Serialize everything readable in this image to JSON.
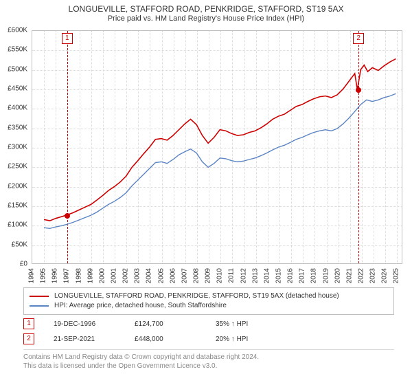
{
  "title": "LONGUEVILLE, STAFFORD ROAD, PENKRIDGE, STAFFORD, ST19 5AX",
  "subtitle": "Price paid vs. HM Land Registry's House Price Index (HPI)",
  "chart": {
    "type": "line",
    "background_color": "#ffffff",
    "grid_color": "#d9d9d9",
    "border_color": "#bfbfbf",
    "x": {
      "min": 1994,
      "max": 2025.5,
      "ticks": [
        1994,
        1995,
        1996,
        1997,
        1998,
        1999,
        2000,
        2001,
        2002,
        2003,
        2004,
        2005,
        2006,
        2007,
        2008,
        2009,
        2010,
        2011,
        2012,
        2013,
        2014,
        2015,
        2016,
        2017,
        2018,
        2019,
        2020,
        2021,
        2022,
        2023,
        2024,
        2025
      ],
      "tick_fontsize": 10
    },
    "y": {
      "min": 0,
      "max": 600000,
      "step": 50000,
      "tick_fontsize": 10,
      "prefix": "£",
      "suffix": "K",
      "divisor": 1000
    },
    "series": [
      {
        "name": "LONGUEVILLE, STAFFORD ROAD, PENKRIDGE, STAFFORD, ST19 5AX (detached house)",
        "color": "#cc0000",
        "line_width": 1.6,
        "data": [
          [
            1995.0,
            113000
          ],
          [
            1995.5,
            110000
          ],
          [
            1996.0,
            116000
          ],
          [
            1996.96,
            124700
          ],
          [
            1997.5,
            131000
          ],
          [
            1998.0,
            138000
          ],
          [
            1998.5,
            145000
          ],
          [
            1999.0,
            152000
          ],
          [
            1999.5,
            163000
          ],
          [
            2000.0,
            175000
          ],
          [
            2000.5,
            188000
          ],
          [
            2001.0,
            198000
          ],
          [
            2001.5,
            210000
          ],
          [
            2002.0,
            225000
          ],
          [
            2002.5,
            248000
          ],
          [
            2003.0,
            265000
          ],
          [
            2003.5,
            283000
          ],
          [
            2004.0,
            300000
          ],
          [
            2004.5,
            320000
          ],
          [
            2005.0,
            322000
          ],
          [
            2005.5,
            318000
          ],
          [
            2006.0,
            330000
          ],
          [
            2006.5,
            345000
          ],
          [
            2007.0,
            360000
          ],
          [
            2007.5,
            372000
          ],
          [
            2008.0,
            358000
          ],
          [
            2008.5,
            330000
          ],
          [
            2009.0,
            310000
          ],
          [
            2009.5,
            325000
          ],
          [
            2010.0,
            345000
          ],
          [
            2010.5,
            342000
          ],
          [
            2011.0,
            335000
          ],
          [
            2011.5,
            330000
          ],
          [
            2012.0,
            332000
          ],
          [
            2012.5,
            338000
          ],
          [
            2013.0,
            342000
          ],
          [
            2013.5,
            350000
          ],
          [
            2014.0,
            360000
          ],
          [
            2014.5,
            372000
          ],
          [
            2015.0,
            380000
          ],
          [
            2015.5,
            385000
          ],
          [
            2016.0,
            395000
          ],
          [
            2016.5,
            405000
          ],
          [
            2017.0,
            410000
          ],
          [
            2017.5,
            418000
          ],
          [
            2018.0,
            425000
          ],
          [
            2018.5,
            430000
          ],
          [
            2019.0,
            432000
          ],
          [
            2019.5,
            428000
          ],
          [
            2020.0,
            435000
          ],
          [
            2020.5,
            450000
          ],
          [
            2021.0,
            470000
          ],
          [
            2021.5,
            490000
          ],
          [
            2021.72,
            448000
          ],
          [
            2022.0,
            500000
          ],
          [
            2022.3,
            512000
          ],
          [
            2022.6,
            495000
          ],
          [
            2023.0,
            505000
          ],
          [
            2023.5,
            498000
          ],
          [
            2024.0,
            510000
          ],
          [
            2024.5,
            520000
          ],
          [
            2025.0,
            528000
          ]
        ]
      },
      {
        "name": "HPI: Average price, detached house, South Staffordshire",
        "color": "#5b84c4",
        "line_width": 1.4,
        "data": [
          [
            1995.0,
            92000
          ],
          [
            1995.5,
            90000
          ],
          [
            1996.0,
            94000
          ],
          [
            1996.5,
            97000
          ],
          [
            1997.0,
            101000
          ],
          [
            1997.5,
            106000
          ],
          [
            1998.0,
            112000
          ],
          [
            1998.5,
            118000
          ],
          [
            1999.0,
            124000
          ],
          [
            1999.5,
            132000
          ],
          [
            2000.0,
            142000
          ],
          [
            2000.5,
            152000
          ],
          [
            2001.0,
            160000
          ],
          [
            2001.5,
            170000
          ],
          [
            2002.0,
            182000
          ],
          [
            2002.5,
            200000
          ],
          [
            2003.0,
            215000
          ],
          [
            2003.5,
            230000
          ],
          [
            2004.0,
            245000
          ],
          [
            2004.5,
            260000
          ],
          [
            2005.0,
            262000
          ],
          [
            2005.5,
            258000
          ],
          [
            2006.0,
            268000
          ],
          [
            2006.5,
            280000
          ],
          [
            2007.0,
            288000
          ],
          [
            2007.5,
            295000
          ],
          [
            2008.0,
            285000
          ],
          [
            2008.5,
            262000
          ],
          [
            2009.0,
            248000
          ],
          [
            2009.5,
            258000
          ],
          [
            2010.0,
            272000
          ],
          [
            2010.5,
            270000
          ],
          [
            2011.0,
            265000
          ],
          [
            2011.5,
            262000
          ],
          [
            2012.0,
            264000
          ],
          [
            2012.5,
            268000
          ],
          [
            2013.0,
            272000
          ],
          [
            2013.5,
            278000
          ],
          [
            2014.0,
            285000
          ],
          [
            2014.5,
            293000
          ],
          [
            2015.0,
            300000
          ],
          [
            2015.5,
            305000
          ],
          [
            2016.0,
            312000
          ],
          [
            2016.5,
            320000
          ],
          [
            2017.0,
            325000
          ],
          [
            2017.5,
            332000
          ],
          [
            2018.0,
            338000
          ],
          [
            2018.5,
            342000
          ],
          [
            2019.0,
            345000
          ],
          [
            2019.5,
            342000
          ],
          [
            2020.0,
            348000
          ],
          [
            2020.5,
            360000
          ],
          [
            2021.0,
            375000
          ],
          [
            2021.5,
            392000
          ],
          [
            2022.0,
            410000
          ],
          [
            2022.5,
            422000
          ],
          [
            2023.0,
            418000
          ],
          [
            2023.5,
            422000
          ],
          [
            2024.0,
            428000
          ],
          [
            2024.5,
            432000
          ],
          [
            2025.0,
            438000
          ]
        ]
      }
    ],
    "markers": [
      {
        "n": "1",
        "year": 1996.96,
        "price": 124700,
        "color": "#cc0000",
        "line_color": "#cc0000"
      },
      {
        "n": "2",
        "year": 2021.72,
        "price": 448000,
        "color": "#cc0000",
        "line_color": "#cc0000"
      }
    ]
  },
  "legend": {
    "items": [
      {
        "label": "LONGUEVILLE, STAFFORD ROAD, PENKRIDGE, STAFFORD, ST19 5AX (detached house)",
        "color": "#cc0000"
      },
      {
        "label": "HPI: Average price, detached house, South Staffordshire",
        "color": "#5b84c4"
      }
    ]
  },
  "points_table": {
    "rows": [
      {
        "n": "1",
        "color": "#cc0000",
        "date": "19-DEC-1996",
        "price": "£124,700",
        "pct": "35%",
        "dir": "↑",
        "dir_label": "HPI"
      },
      {
        "n": "2",
        "color": "#cc0000",
        "date": "21-SEP-2021",
        "price": "£448,000",
        "pct": "20%",
        "dir": "↑",
        "dir_label": "HPI"
      }
    ]
  },
  "attribution": {
    "line1": "Contains HM Land Registry data © Crown copyright and database right 2024.",
    "line2": "This data is licensed under the Open Government Licence v3.0."
  }
}
